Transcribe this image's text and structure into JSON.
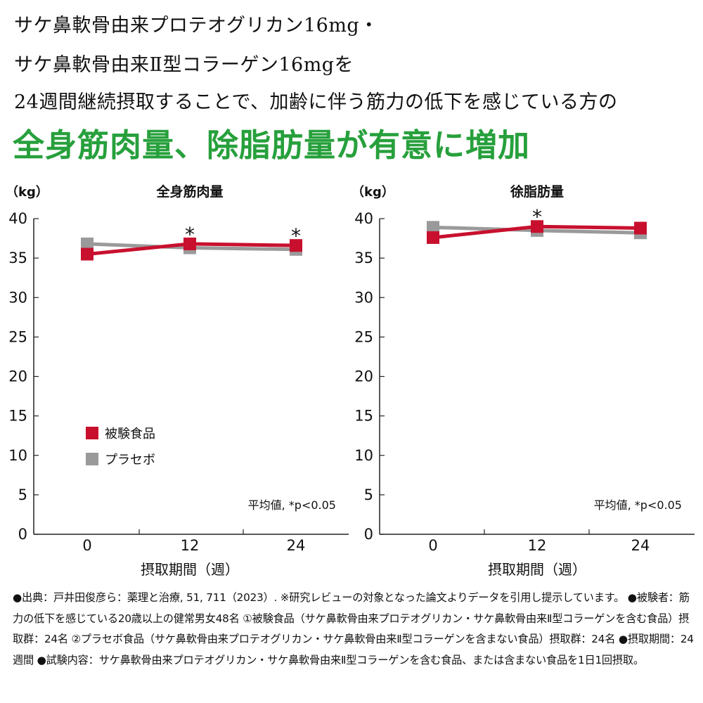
{
  "headline": {
    "line1": "サケ鼻軟骨由来プロテオグリカン16mg・",
    "line2": "サケ鼻軟骨由来Ⅱ型コラーゲン16mgを",
    "line3": "24週間継続摂取することで、加齢に伴う筋力の低下を感じている方の",
    "highlight": "全身筋肉量、除脂肪量が有意に増加"
  },
  "colors": {
    "headline_green": "#27a03c",
    "test_food": "#c8102e",
    "placebo": "#9a9a9a"
  },
  "chart_data": [
    {
      "type": "line",
      "title": "全身筋肉量",
      "ylabel": "（kg）",
      "xlabel": "摂取期間（週）",
      "ylim": [
        0,
        40
      ],
      "yticks": [
        "0",
        "5",
        "10",
        "15",
        "20",
        "25",
        "30",
        "35",
        "40"
      ],
      "x": [
        "0",
        "12",
        "24"
      ],
      "series": [
        {
          "name": "被験食品",
          "values": [
            35.5,
            36.8,
            36.6
          ]
        },
        {
          "name": "プラセボ",
          "values": [
            36.8,
            36.3,
            36.1
          ]
        }
      ],
      "significance": [
        "",
        "*",
        "*"
      ],
      "legend": {
        "position": "bottom-left",
        "items": [
          "被験食品",
          "プラセボ"
        ]
      },
      "note": "平均値, *p<0.05"
    },
    {
      "type": "line",
      "title": "徐脂肪量",
      "ylabel": "（kg）",
      "xlabel": "摂取期間（週）",
      "ylim": [
        0,
        40
      ],
      "yticks": [
        "0",
        "5",
        "10",
        "15",
        "20",
        "25",
        "30",
        "35",
        "40"
      ],
      "x": [
        "0",
        "12",
        "24"
      ],
      "series": [
        {
          "name": "被験食品",
          "values": [
            37.6,
            39.0,
            38.8
          ]
        },
        {
          "name": "プラセボ",
          "values": [
            38.9,
            38.5,
            38.2
          ]
        }
      ],
      "significance": [
        "",
        "*",
        ""
      ],
      "note": "平均値, *p<0.05"
    }
  ],
  "footnote": "●出典：戸井田俊彦ら：薬理と治療, 51, 711（2023）. ※研究レビューの対象となった論文よりデータを引用し提示しています。 ●被験者：筋力の低下を感じている20歳以上の健常男女48名 ①被験食品（サケ鼻軟骨由来プロテオグリカン・サケ鼻軟骨由来Ⅱ型コラーゲンを含む食品）摂取群：24名 ②プラセボ食品（サケ鼻軟骨由来プロテオグリカン・サケ鼻軟骨由来Ⅱ型コラーゲンを含まない食品）摂取群：24名 ●摂取期間：24週間 ●試験内容：サケ鼻軟骨由来プロテオグリカン・サケ鼻軟骨由来Ⅱ型コラーゲンを含む食品、または含まない食品を1日1回摂取。"
}
